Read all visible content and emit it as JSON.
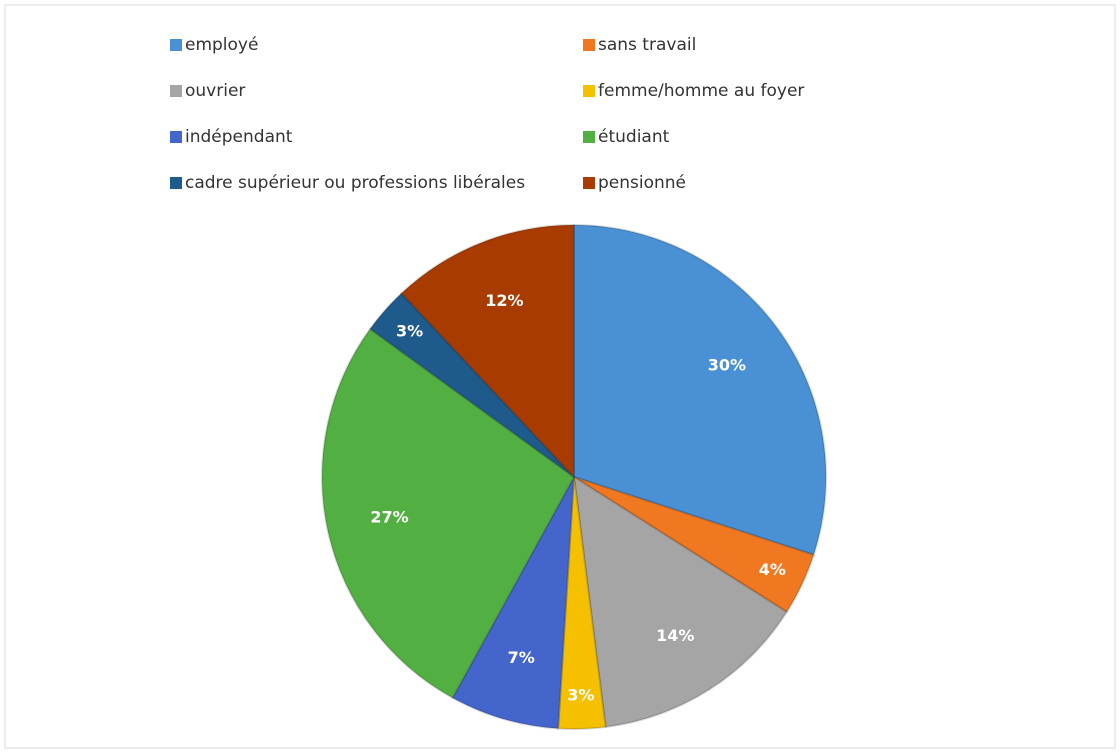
{
  "chart_data": {
    "type": "pie",
    "categories": [
      "employé",
      "sans travail",
      "ouvrier",
      "femme/homme au foyer",
      "indépendant",
      "étudiant",
      "cadre supérieur ou professions libérales",
      "pensionné"
    ],
    "values": [
      30,
      4,
      14,
      3,
      7,
      27,
      3,
      12
    ],
    "value_labels": [
      "30%",
      "4%",
      "14%",
      "3%",
      "7%",
      "27%",
      "3%",
      "12%"
    ],
    "colors": [
      "#4a90d4",
      "#f07820",
      "#a5a5a5",
      "#f5c000",
      "#4466cc",
      "#52b043",
      "#1f5a8c",
      "#a83c00"
    ],
    "legend": "top"
  }
}
